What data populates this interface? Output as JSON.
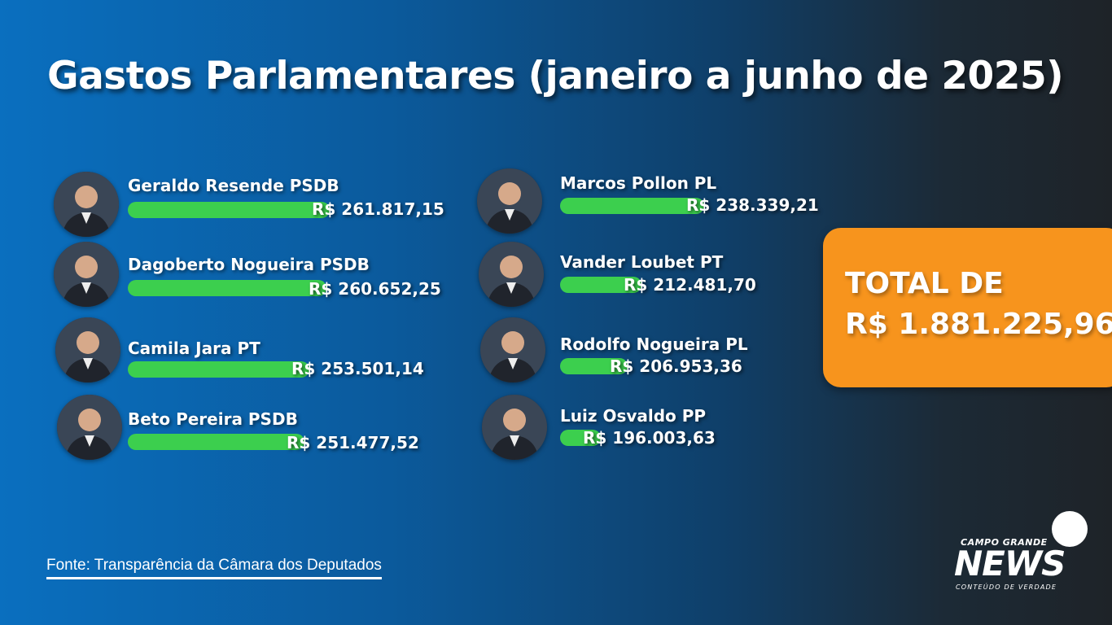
{
  "header": {
    "title": "Gastos Parlamentares (janeiro a junho de 2025)"
  },
  "chart_data": {
    "type": "bar",
    "title": "Gastos Parlamentares (janeiro a junho de 2025)",
    "categories": [
      "Geraldo Resende PSDB",
      "Dagoberto Nogueira PSDB",
      "Camila Jara PT",
      "Beto Pereira PSDB",
      "Marcos Pollon PL",
      "Vander Loubet PT",
      "Rodolfo Nogueira PL",
      "Luiz Osvaldo PP"
    ],
    "values": [
      261817.15,
      260652.25,
      253501.14,
      251477.52,
      238339.21,
      212481.7,
      206953.36,
      196003.63
    ],
    "value_labels": [
      "R$ 261.817,15",
      "R$ 260.652,25",
      "R$ 253.501,14",
      "R$ 251.477,52",
      "R$ 238.339,21",
      "R$ 212.481,70",
      "R$ 206.953,36",
      "R$ 196.003,63"
    ],
    "bar_color": "#3ccf4e"
  },
  "total": {
    "label": "TOTAL DE",
    "value": "R$ 1.881.225,96",
    "color": "#f7941d"
  },
  "source": "Fonte: Transparência da Câmara dos Deputados",
  "logo": {
    "top": "CAMPO GRANDE",
    "main": "NEWS",
    "bottom": "CONTEÚDO DE VERDADE"
  }
}
